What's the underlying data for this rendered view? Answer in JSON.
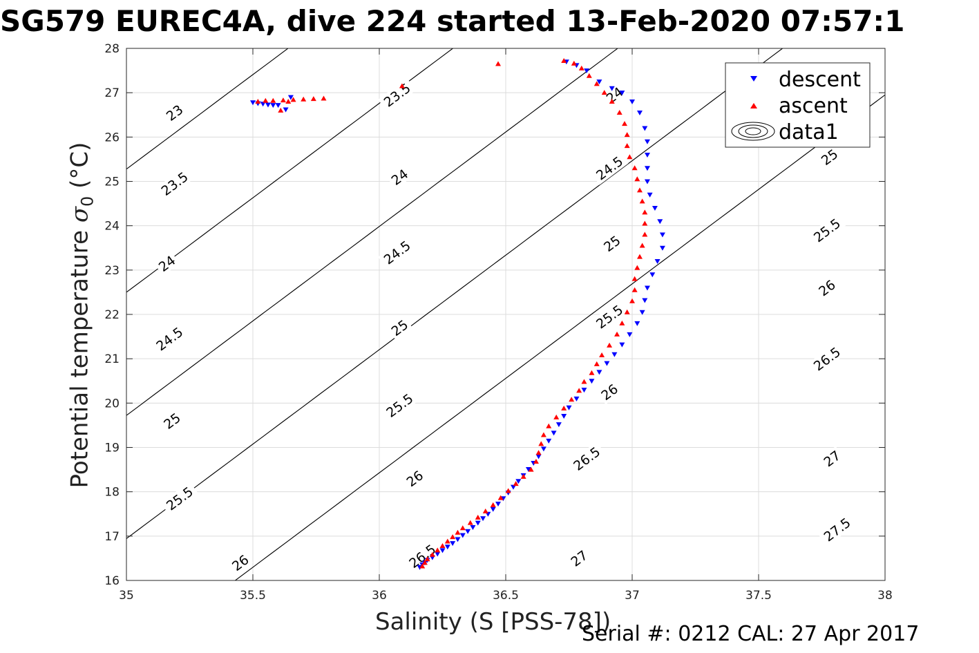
{
  "chart_data": {
    "type": "scatter",
    "title": "SG579 EUREC4A, dive 224 started 13-Feb-2020 07:57:1",
    "xlabel": "Salinity (S [PSS-78])",
    "ylabel_main": "Potential temperature",
    "ylabel_sub": "0",
    "ylabel_unit": "(°C)",
    "footnote": "Serial #: 0212  CAL: 27 Apr 2017",
    "xlim": [
      35,
      38
    ],
    "ylim": [
      16,
      28
    ],
    "xticks": [
      "35",
      "35.5",
      "36",
      "36.5",
      "37",
      "37.5",
      "38"
    ],
    "yticks": [
      "16",
      "17",
      "18",
      "19",
      "20",
      "21",
      "22",
      "23",
      "24",
      "25",
      "26",
      "27",
      "28"
    ],
    "grid": true,
    "legend_position": "top-right",
    "legend": [
      "descent",
      "ascent",
      "data1"
    ],
    "colors": {
      "descent": "#0000ff",
      "ascent": "#ff0000",
      "contour": "#000000",
      "grid": "#dcdcdc"
    },
    "density_contours": [
      {
        "label": "23",
        "sigma": 23.0
      },
      {
        "label": "23.5",
        "sigma": 23.5
      },
      {
        "label": "24",
        "sigma": 24.0
      },
      {
        "label": "24.5",
        "sigma": 24.5
      },
      {
        "label": "25",
        "sigma": 25.0
      },
      {
        "label": "25.5",
        "sigma": 25.5
      },
      {
        "label": "26",
        "sigma": 26.0
      },
      {
        "label": "26.5",
        "sigma": 26.5
      },
      {
        "label": "27",
        "sigma": 27.0
      },
      {
        "label": "27.5",
        "sigma": 27.5
      }
    ],
    "contour_labels": [
      {
        "text": "23",
        "x": 35.19,
        "y": 26.55
      },
      {
        "text": "23.5",
        "x": 35.19,
        "y": 24.95
      },
      {
        "text": "24",
        "x": 35.16,
        "y": 23.15
      },
      {
        "text": "24.5",
        "x": 35.17,
        "y": 21.45
      },
      {
        "text": "25",
        "x": 35.18,
        "y": 19.6
      },
      {
        "text": "25.5",
        "x": 35.21,
        "y": 17.85
      },
      {
        "text": "26",
        "x": 35.45,
        "y": 16.4
      },
      {
        "text": "23.5",
        "x": 36.07,
        "y": 26.95
      },
      {
        "text": "24",
        "x": 36.08,
        "y": 25.1
      },
      {
        "text": "24.5",
        "x": 36.07,
        "y": 23.4
      },
      {
        "text": "25",
        "x": 36.08,
        "y": 21.7
      },
      {
        "text": "25.5",
        "x": 36.08,
        "y": 19.95
      },
      {
        "text": "26",
        "x": 36.14,
        "y": 18.3
      },
      {
        "text": "26.5",
        "x": 36.17,
        "y": 16.55
      },
      {
        "text": "24",
        "x": 36.93,
        "y": 26.95
      },
      {
        "text": "24.5",
        "x": 36.91,
        "y": 25.3
      },
      {
        "text": "25",
        "x": 36.92,
        "y": 23.6
      },
      {
        "text": "25.5",
        "x": 36.91,
        "y": 21.95
      },
      {
        "text": "26",
        "x": 36.91,
        "y": 20.25
      },
      {
        "text": "26.5",
        "x": 36.82,
        "y": 18.75
      },
      {
        "text": "27",
        "x": 36.79,
        "y": 16.5
      },
      {
        "text": "25",
        "x": 37.78,
        "y": 25.55
      },
      {
        "text": "25.5",
        "x": 37.77,
        "y": 23.9
      },
      {
        "text": "26",
        "x": 37.77,
        "y": 22.6
      },
      {
        "text": "26.5",
        "x": 37.77,
        "y": 21.0
      },
      {
        "text": "27",
        "x": 37.79,
        "y": 18.75
      },
      {
        "text": "27.5",
        "x": 37.81,
        "y": 17.15
      }
    ],
    "series": [
      {
        "name": "descent",
        "marker": "triangle-down",
        "points": [
          [
            35.5,
            26.78
          ],
          [
            35.52,
            26.76
          ],
          [
            35.54,
            26.75
          ],
          [
            35.56,
            26.73
          ],
          [
            35.58,
            26.72
          ],
          [
            35.6,
            26.72
          ],
          [
            35.63,
            26.62
          ],
          [
            35.65,
            26.9
          ],
          [
            36.16,
            16.3
          ],
          [
            36.17,
            16.36
          ],
          [
            36.18,
            16.4
          ],
          [
            36.19,
            16.46
          ],
          [
            36.21,
            16.52
          ],
          [
            36.23,
            16.6
          ],
          [
            36.25,
            16.68
          ],
          [
            36.27,
            16.76
          ],
          [
            36.29,
            16.84
          ],
          [
            36.31,
            16.93
          ],
          [
            36.33,
            17.02
          ],
          [
            36.35,
            17.11
          ],
          [
            36.37,
            17.2
          ],
          [
            36.39,
            17.3
          ],
          [
            36.41,
            17.4
          ],
          [
            36.43,
            17.5
          ],
          [
            36.45,
            17.61
          ],
          [
            36.47,
            17.73
          ],
          [
            36.49,
            17.85
          ],
          [
            36.51,
            17.98
          ],
          [
            36.53,
            18.11
          ],
          [
            36.55,
            18.24
          ],
          [
            36.57,
            18.37
          ],
          [
            36.59,
            18.51
          ],
          [
            36.61,
            18.65
          ],
          [
            36.63,
            18.8
          ],
          [
            36.65,
            18.97
          ],
          [
            36.67,
            19.15
          ],
          [
            36.69,
            19.33
          ],
          [
            36.71,
            19.52
          ],
          [
            36.73,
            19.71
          ],
          [
            36.75,
            19.9
          ],
          [
            36.78,
            20.1
          ],
          [
            36.81,
            20.3
          ],
          [
            36.84,
            20.5
          ],
          [
            36.87,
            20.7
          ],
          [
            36.9,
            20.9
          ],
          [
            36.93,
            21.1
          ],
          [
            36.96,
            21.32
          ],
          [
            36.99,
            21.55
          ],
          [
            37.02,
            21.8
          ],
          [
            37.04,
            22.05
          ],
          [
            37.05,
            22.32
          ],
          [
            37.06,
            22.6
          ],
          [
            37.08,
            22.9
          ],
          [
            37.1,
            23.2
          ],
          [
            37.12,
            23.5
          ],
          [
            37.12,
            23.8
          ],
          [
            37.11,
            24.1
          ],
          [
            37.09,
            24.4
          ],
          [
            37.07,
            24.7
          ],
          [
            37.06,
            25.0
          ],
          [
            37.06,
            25.3
          ],
          [
            37.06,
            25.6
          ],
          [
            37.06,
            25.9
          ],
          [
            37.05,
            26.2
          ],
          [
            37.03,
            26.55
          ],
          [
            37.0,
            26.8
          ],
          [
            36.96,
            27.0
          ],
          [
            36.92,
            27.1
          ],
          [
            36.87,
            27.25
          ],
          [
            36.82,
            27.5
          ],
          [
            36.78,
            27.62
          ],
          [
            36.74,
            27.7
          ]
        ]
      },
      {
        "name": "ascent",
        "marker": "triangle-up",
        "points": [
          [
            35.52,
            26.8
          ],
          [
            35.55,
            26.82
          ],
          [
            35.58,
            26.82
          ],
          [
            35.62,
            26.83
          ],
          [
            35.66,
            26.84
          ],
          [
            35.7,
            26.85
          ],
          [
            35.74,
            26.86
          ],
          [
            35.78,
            26.87
          ],
          [
            35.64,
            26.8
          ],
          [
            35.61,
            26.6
          ],
          [
            36.09,
            27.15
          ],
          [
            36.47,
            27.65
          ],
          [
            36.17,
            16.32
          ],
          [
            36.18,
            16.4
          ],
          [
            36.19,
            16.48
          ],
          [
            36.21,
            16.58
          ],
          [
            36.23,
            16.68
          ],
          [
            36.25,
            16.78
          ],
          [
            36.27,
            16.88
          ],
          [
            36.29,
            16.98
          ],
          [
            36.31,
            17.08
          ],
          [
            36.33,
            17.18
          ],
          [
            36.36,
            17.3
          ],
          [
            36.39,
            17.42
          ],
          [
            36.42,
            17.56
          ],
          [
            36.45,
            17.7
          ],
          [
            36.48,
            17.86
          ],
          [
            36.51,
            18.02
          ],
          [
            36.54,
            18.18
          ],
          [
            36.57,
            18.34
          ],
          [
            36.6,
            18.5
          ],
          [
            36.62,
            18.68
          ],
          [
            36.63,
            18.88
          ],
          [
            36.64,
            19.08
          ],
          [
            36.65,
            19.28
          ],
          [
            36.67,
            19.48
          ],
          [
            36.7,
            19.68
          ],
          [
            36.73,
            19.88
          ],
          [
            36.76,
            20.08
          ],
          [
            36.79,
            20.28
          ],
          [
            36.81,
            20.48
          ],
          [
            36.84,
            20.68
          ],
          [
            36.86,
            20.88
          ],
          [
            36.88,
            21.08
          ],
          [
            36.91,
            21.3
          ],
          [
            36.94,
            21.55
          ],
          [
            36.96,
            21.8
          ],
          [
            36.98,
            22.05
          ],
          [
            37.0,
            22.3
          ],
          [
            37.01,
            22.55
          ],
          [
            37.01,
            22.8
          ],
          [
            37.02,
            23.05
          ],
          [
            37.03,
            23.3
          ],
          [
            37.04,
            23.55
          ],
          [
            37.05,
            23.8
          ],
          [
            37.05,
            24.05
          ],
          [
            37.05,
            24.3
          ],
          [
            37.04,
            24.55
          ],
          [
            37.03,
            24.8
          ],
          [
            37.02,
            25.05
          ],
          [
            37.01,
            25.3
          ],
          [
            36.99,
            25.55
          ],
          [
            36.98,
            25.8
          ],
          [
            36.98,
            26.05
          ],
          [
            36.97,
            26.3
          ],
          [
            36.95,
            26.55
          ],
          [
            36.92,
            26.8
          ],
          [
            36.89,
            27.0
          ],
          [
            36.86,
            27.2
          ],
          [
            36.83,
            27.38
          ],
          [
            36.8,
            27.55
          ],
          [
            36.77,
            27.66
          ],
          [
            36.73,
            27.72
          ]
        ]
      }
    ]
  }
}
